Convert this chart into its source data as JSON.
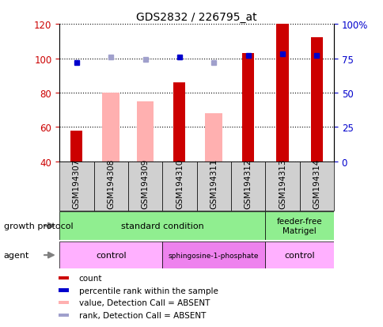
{
  "title": "GDS2832 / 226795_at",
  "samples": [
    "GSM194307",
    "GSM194308",
    "GSM194309",
    "GSM194310",
    "GSM194311",
    "GSM194312",
    "GSM194313",
    "GSM194314"
  ],
  "count_values": [
    58,
    null,
    null,
    86,
    null,
    103,
    121,
    112
  ],
  "count_color": "#cc0000",
  "absent_value_values": [
    null,
    80,
    75,
    null,
    68,
    null,
    null,
    null
  ],
  "absent_value_color": "#ffb0b0",
  "percentile_rank": [
    72,
    null,
    null,
    76,
    null,
    77,
    78,
    77
  ],
  "percentile_rank_color": "#0000cc",
  "absent_rank_values": [
    null,
    76,
    74,
    null,
    72,
    null,
    null,
    null
  ],
  "absent_rank_color": "#a0a0cc",
  "ylim_left": [
    40,
    120
  ],
  "ylim_right": [
    0,
    100
  ],
  "yticks_left": [
    40,
    60,
    80,
    100,
    120
  ],
  "yticks_right": [
    0,
    25,
    50,
    75,
    100
  ],
  "ytick_labels_right": [
    "0",
    "25",
    "50",
    "75",
    "100%"
  ],
  "legend_items": [
    {
      "label": "count",
      "color": "#cc0000"
    },
    {
      "label": "percentile rank within the sample",
      "color": "#0000cc"
    },
    {
      "label": "value, Detection Call = ABSENT",
      "color": "#ffb0b0"
    },
    {
      "label": "rank, Detection Call = ABSENT",
      "color": "#a0a0cc"
    }
  ],
  "left_ylabel_color": "#cc0000",
  "right_ylabel_color": "#0000cc",
  "bg_color": "#ffffff",
  "plot_bg": "#ffffff",
  "grid_color": "#000000",
  "sample_box_color": "#d0d0d0",
  "growth_protocol_color": "#90ee90",
  "agent_control_color": "#ffb0ff",
  "agent_sphingo_color": "#ee82ee",
  "count_bar_width": 0.35,
  "absent_bar_width": 0.5
}
